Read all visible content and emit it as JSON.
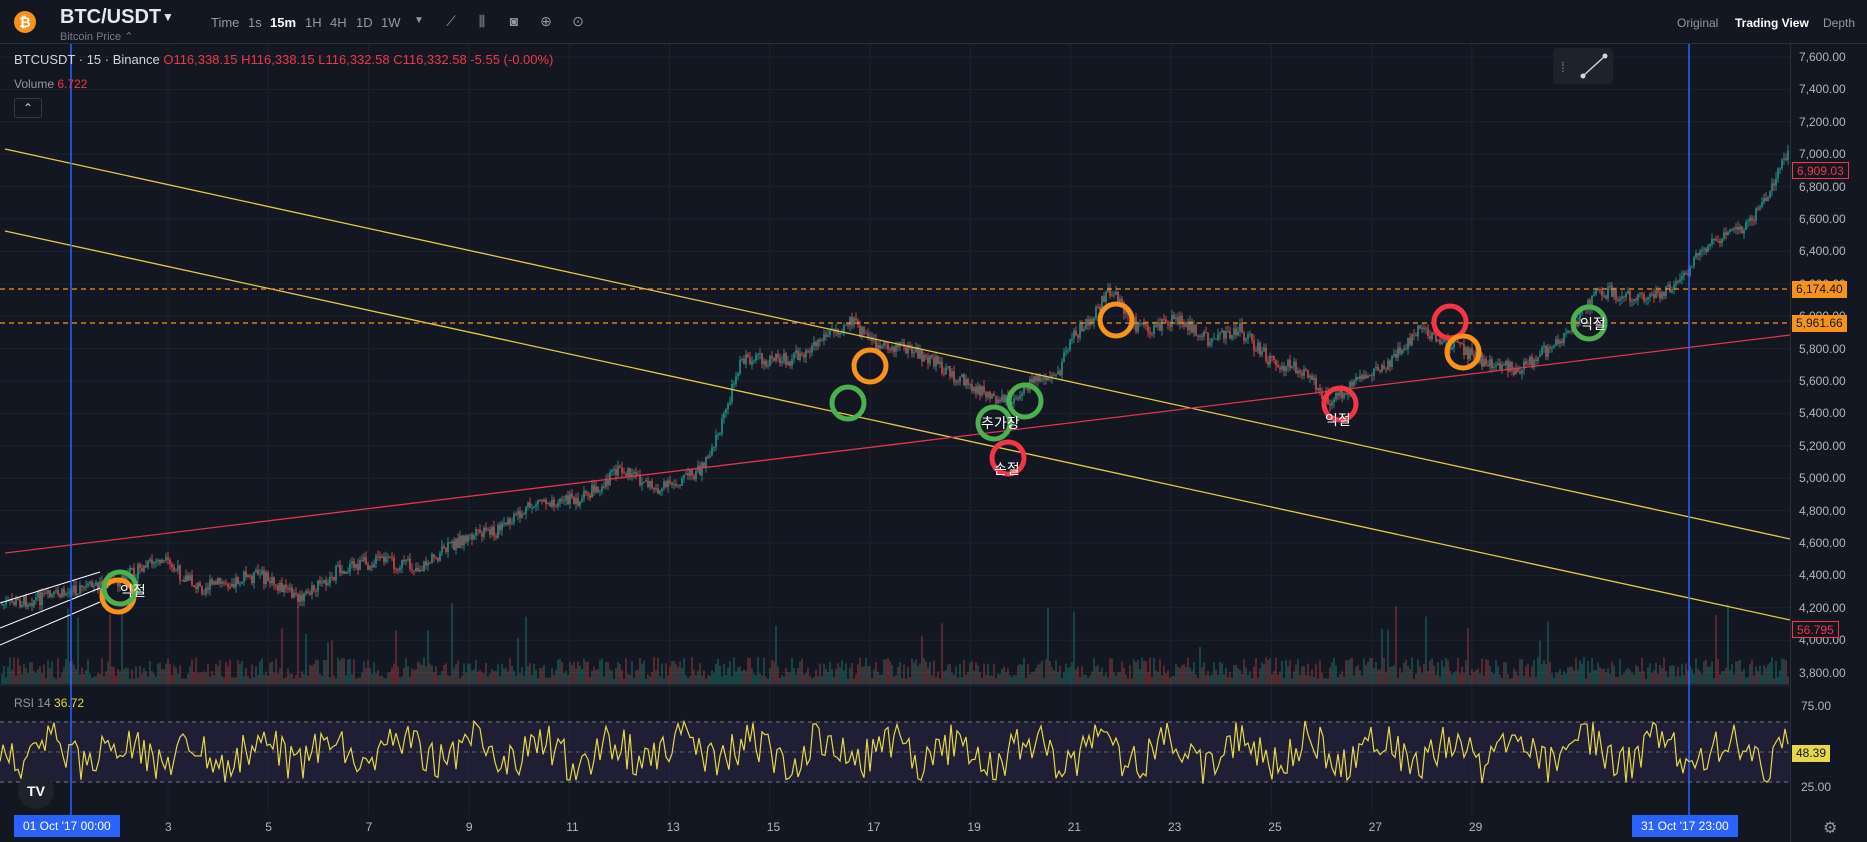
{
  "header": {
    "pair": "BTC/USDT",
    "subtitle": "Bitcoin Price",
    "timeframes": [
      "Time",
      "1s",
      "15m",
      "1H",
      "4H",
      "1D",
      "1W"
    ],
    "active_timeframe": "15m",
    "views": [
      "Original",
      "Trading View",
      "Depth"
    ],
    "active_view": "Trading View"
  },
  "legend": {
    "symbol": "BTCUSDT · 15 · Binance",
    "ohlc": "O116,338.15 H116,338.15 L116,332.58 C116,332.58 -5.55 (-0.00%)",
    "volume_label": "Volume",
    "volume_value": "6.722"
  },
  "rsi": {
    "label": "RSI 14",
    "value": "36.72",
    "tag": "48.39",
    "levels": [
      "75.00",
      "25.00"
    ]
  },
  "price_axis": [
    "7,600.00",
    "7,400.00",
    "7,200.00",
    "7,000.00",
    "6,800.00",
    "6,600.00",
    "6,400.00",
    "6,200.00",
    "6,000.00",
    "5,800.00",
    "5,600.00",
    "5,400.00",
    "5,200.00",
    "5,000.00",
    "4,800.00",
    "4,600.00",
    "4,400.00",
    "4,200.00",
    "4,000.00",
    "3,800.00"
  ],
  "price_tags": {
    "last": "6,909.03",
    "level1": "6,174.40",
    "level2": "5,961.66",
    "volume": "56.795"
  },
  "date_axis": [
    "3",
    "5",
    "7",
    "9",
    "11",
    "13",
    "15",
    "17",
    "19",
    "21",
    "23",
    "25",
    "27",
    "29"
  ],
  "date_tags": {
    "start": "01 Oct '17   00:00",
    "end": "31 Oct '17   23:00"
  },
  "annotations": {
    "a1": "익절",
    "a2": "추가장",
    "a3": "손절",
    "a4": "익절",
    "a5": "익절"
  },
  "colors": {
    "bg": "#131722",
    "up": "#26a69a",
    "down": "#ef5350",
    "orange": "#f7931a",
    "green": "#4caf50",
    "red": "#f23645",
    "yellow": "#e6d84a",
    "blue": "#2962ff"
  }
}
